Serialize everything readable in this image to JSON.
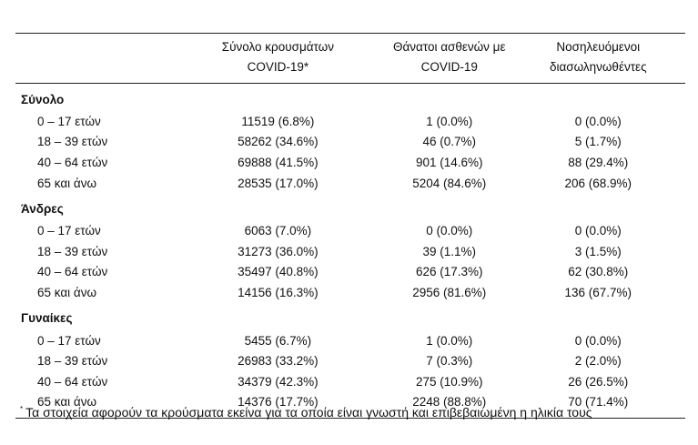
{
  "headers": [
    "",
    "Σύνολο κρουσμάτων COVID-19*",
    "Θάνατοι ασθενών με COVID-19",
    "Νοσηλευόμενοι διασωληνωθέντες"
  ],
  "header_lines": [
    [
      "Σύνολο κρουσμάτων",
      "COVID-19*"
    ],
    [
      "Θάνατοι ασθενών με",
      "COVID-19"
    ],
    [
      "Νοσηλευόμενοι",
      "διασωληνωθέντες"
    ]
  ],
  "sections": [
    {
      "title": "Σύνολο",
      "rows": [
        [
          "0 – 17 ετών",
          "11519 (6.8%)",
          "1 (0.0%)",
          "0 (0.0%)"
        ],
        [
          "18 – 39 ετών",
          "58262 (34.6%)",
          "46 (0.7%)",
          "5 (1.7%)"
        ],
        [
          "40 – 64 ετών",
          "69888 (41.5%)",
          "901 (14.6%)",
          "88 (29.4%)"
        ],
        [
          "65 και άνω",
          "28535 (17.0%)",
          "5204 (84.6%)",
          "206 (68.9%)"
        ]
      ]
    },
    {
      "title": "Άνδρες",
      "rows": [
        [
          "0 – 17 ετών",
          "6063 (7.0%)",
          "0 (0.0%)",
          "0 (0.0%)"
        ],
        [
          "18 – 39 ετών",
          "31273 (36.0%)",
          "39 (1.1%)",
          "3 (1.5%)"
        ],
        [
          "40 – 64 ετών",
          "35497 (40.8%)",
          "626 (17.3%)",
          "62 (30.8%)"
        ],
        [
          "65 και άνω",
          "14156 (16.3%)",
          "2956 (81.6%)",
          "136 (67.7%)"
        ]
      ]
    },
    {
      "title": "Γυναίκες",
      "rows": [
        [
          "0 – 17 ετών",
          "5455 (6.7%)",
          "1 (0.0%)",
          "0 (0.0%)"
        ],
        [
          "18 – 39 ετών",
          "26983 (33.2%)",
          "7 (0.3%)",
          "2 (2.0%)"
        ],
        [
          "40 – 64 ετών",
          "34379 (42.3%)",
          "275 (10.9%)",
          "26 (26.5%)"
        ],
        [
          "65 και άνω",
          "14376 (17.7%)",
          "2248 (88.8%)",
          "70 (71.4%)"
        ]
      ]
    }
  ],
  "footnote": {
    "mark": "*",
    "text": "Τα στοιχεία αφορούν τα κρούσματα εκείνα για τα οποία είναι γνωστή και επιβεβαιωμένη η ηλικία τους"
  }
}
